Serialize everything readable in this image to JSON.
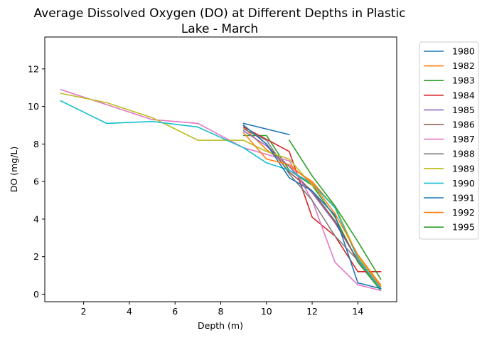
{
  "chart_data": {
    "type": "line",
    "title_line1": "Average Dissolved Oxygen (DO) at Different Depths in Plastic",
    "title_line2": "Lake - March",
    "xlabel": "Depth (m)",
    "ylabel": "DO (mg/L)",
    "xlim": [
      0.3,
      15.7
    ],
    "ylim": [
      -0.4,
      13.7
    ],
    "xticks": [
      2,
      4,
      6,
      8,
      10,
      12,
      14
    ],
    "yticks": [
      0,
      2,
      4,
      6,
      8,
      10,
      12
    ],
    "grid": false,
    "legend_position": "outside-right",
    "series": [
      {
        "name": "1980",
        "color": "#1f77b4",
        "x": [
          9,
          11
        ],
        "y": [
          9.1,
          8.5
        ]
      },
      {
        "name": "1982",
        "color": "#ff7f0e",
        "x": [
          9,
          10,
          11,
          12,
          13,
          14,
          15
        ],
        "y": [
          8.9,
          7.7,
          6.8,
          6.0,
          4.6,
          2.0,
          0.4
        ]
      },
      {
        "name": "1983",
        "color": "#2ca02c",
        "x": [
          9,
          10,
          11,
          12,
          13,
          14,
          15
        ],
        "y": [
          8.45,
          8.45,
          6.6,
          5.8,
          4.1,
          1.7,
          0.2
        ]
      },
      {
        "name": "1984",
        "color": "#d62728",
        "x": [
          9,
          11,
          12,
          13,
          14,
          15
        ],
        "y": [
          8.9,
          7.6,
          4.1,
          3.1,
          1.2,
          1.2
        ]
      },
      {
        "name": "1985",
        "color": "#9467bd",
        "x": [
          9,
          10,
          11,
          12,
          13,
          14,
          15
        ],
        "y": [
          8.7,
          7.9,
          6.8,
          5.4,
          3.8,
          1.8,
          0.3
        ]
      },
      {
        "name": "1986",
        "color": "#8c564b",
        "x": [
          9,
          10,
          11,
          12,
          13,
          14,
          15
        ],
        "y": [
          9.0,
          8.0,
          6.5,
          5.5,
          3.9,
          1.8,
          0.3
        ]
      },
      {
        "name": "1987",
        "color": "#e377c2",
        "x": [
          1,
          3,
          5,
          7,
          9,
          11,
          12,
          13,
          14,
          15
        ],
        "y": [
          10.9,
          10.1,
          9.3,
          9.1,
          7.8,
          7.1,
          5.0,
          1.7,
          0.5,
          0.2
        ]
      },
      {
        "name": "1988",
        "color": "#7f7f7f",
        "x": [
          9,
          10,
          11,
          12,
          13,
          14,
          15
        ],
        "y": [
          8.8,
          8.2,
          6.4,
          5.0,
          3.1,
          1.8,
          0.3
        ]
      },
      {
        "name": "1989",
        "color": "#bcbd22",
        "x": [
          1,
          3,
          5,
          7,
          9,
          10,
          11,
          12,
          13,
          14,
          15
        ],
        "y": [
          10.7,
          10.2,
          9.4,
          8.2,
          8.2,
          7.6,
          7.2,
          5.8,
          4.7,
          2.0,
          0.3
        ]
      },
      {
        "name": "1990",
        "color": "#17becf",
        "x": [
          1,
          3,
          5,
          7,
          9,
          10,
          11,
          12,
          13,
          14,
          15
        ],
        "y": [
          10.3,
          9.1,
          9.2,
          8.9,
          7.8,
          7.0,
          6.6,
          5.9,
          4.6,
          1.9,
          0.3
        ]
      },
      {
        "name": "1991",
        "color": "#1f77b4",
        "x": [
          9,
          10,
          11,
          12,
          13,
          14,
          15
        ],
        "y": [
          9.0,
          8.0,
          6.2,
          5.5,
          4.2,
          0.6,
          0.3
        ]
      },
      {
        "name": "1992",
        "color": "#ff7f0e",
        "x": [
          9,
          10,
          11,
          12,
          13,
          14,
          15
        ],
        "y": [
          8.6,
          7.2,
          6.9,
          5.9,
          4.3,
          2.1,
          0.5
        ]
      },
      {
        "name": "1995",
        "color": "#2ca02c",
        "x": [
          11,
          12,
          13,
          14,
          15
        ],
        "y": [
          8.2,
          6.3,
          4.7,
          2.8,
          0.8
        ]
      }
    ]
  }
}
